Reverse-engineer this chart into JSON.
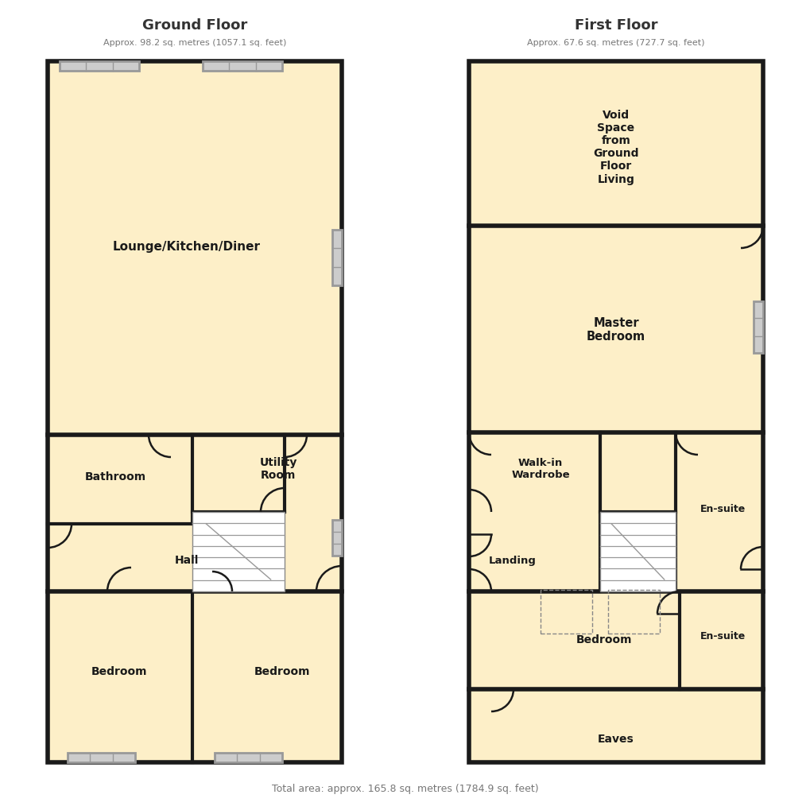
{
  "bg_color": "#ffffff",
  "wall_color": "#1a1a1a",
  "room_fill": "#fdefc8",
  "wall_lw": 4.0,
  "inner_lw": 3.0,
  "door_lw": 1.8,
  "ground_title": "Ground Floor",
  "ground_subtitle": "Approx. 98.2 sq. metres (1057.1 sq. feet)",
  "first_title": "First Floor",
  "first_subtitle": "Approx. 67.6 sq. metres (727.7 sq. feet)",
  "total_area": "Total area: approx. 165.8 sq. metres (1784.9 sq. feet)",
  "title_color": "#333333",
  "subtitle_color": "#777777",
  "label_color": "#1a1a1a",
  "win_color": "#999999",
  "win_fill": "#cccccc",
  "stair_color": "#aaaaaa"
}
